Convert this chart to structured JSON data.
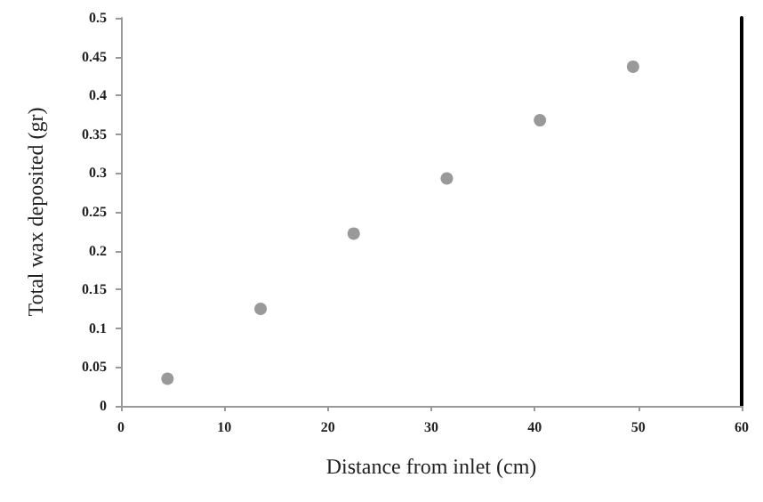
{
  "chart_data": {
    "type": "scatter",
    "xlabel": "Distance from inlet (cm)",
    "ylabel": "Total wax deposited (gr)",
    "x": [
      4.5,
      13.5,
      22.5,
      31.5,
      40.5,
      49.5
    ],
    "values": [
      0.035,
      0.125,
      0.222,
      0.293,
      0.368,
      0.437
    ],
    "color": "#7f7f7f",
    "marker": "circle",
    "xlim": [
      0,
      60
    ],
    "xticks": [
      0,
      10,
      20,
      30,
      40,
      50,
      60
    ],
    "ylim": [
      0,
      0.5
    ],
    "yticks": [
      0,
      0.05,
      0.1,
      0.15,
      0.2,
      0.25,
      0.3,
      0.35,
      0.4,
      0.45,
      0.5
    ],
    "grid": false
  }
}
